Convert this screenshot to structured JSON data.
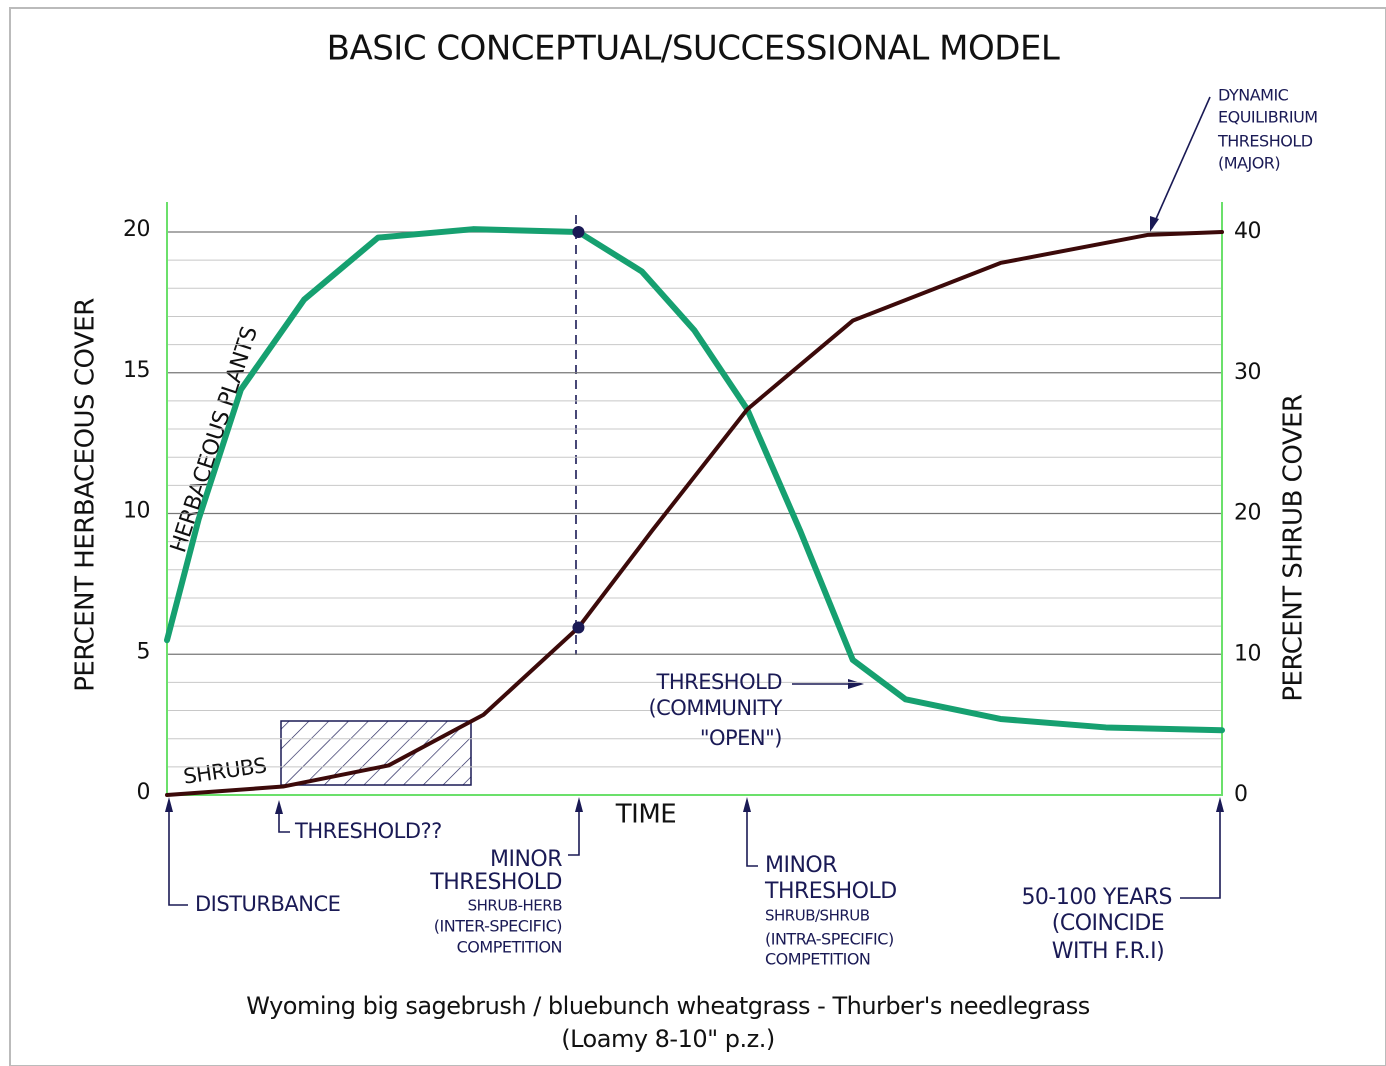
{
  "chart_data": {
    "type": "line",
    "title": "BASIC CONCEPTUAL/SUCCESSIONAL MODEL",
    "subtitle": [
      "Wyoming big sagebrush / bluebunch wheatgrass - Thurber's needlegrass",
      "(Loamy 8-10\" p.z.)"
    ],
    "x_label": "TIME",
    "y_label": "PERCENT HERBACEOUS COVER",
    "y2_label": "PERCENT SHRUB COVER",
    "xlim": [
      0,
      100
    ],
    "ylim": [
      0,
      20
    ],
    "yticks": [
      0,
      5,
      10,
      15,
      20
    ],
    "minor_yticks": [
      1,
      2,
      3,
      4,
      6,
      7,
      8,
      9,
      11,
      12,
      13,
      14,
      16,
      17,
      18,
      19
    ],
    "y2lim": [
      0,
      40
    ],
    "y2ticks": [
      0,
      10,
      20,
      30,
      40
    ],
    "grid": true,
    "series": [
      {
        "name": "HERBACEOUS PLANTS",
        "color": "#16a070",
        "x": [
          0,
          3,
          7,
          13,
          20,
          29,
          39,
          45,
          50,
          55,
          60,
          65,
          70,
          79,
          89,
          100
        ],
        "values": [
          5.5,
          9.8,
          14.4,
          17.6,
          19.8,
          20.1,
          20,
          18.6,
          16.5,
          13.7,
          9.4,
          4.8,
          3.4,
          2.7,
          2.4,
          2.3
        ]
      },
      {
        "name": "SHRUBS",
        "color": "#3c0a0a",
        "axis": "y2",
        "x": [
          0,
          11,
          21,
          30,
          39,
          46,
          55,
          65,
          79,
          93,
          100
        ],
        "values": [
          0,
          0.6,
          2.1,
          5.7,
          11.9,
          18.8,
          27.4,
          33.7,
          37.8,
          39.8,
          40
        ]
      }
    ],
    "annotations": [
      {
        "lines": [
          "THRESHOLD??"
        ]
      },
      {
        "lines": [
          "MINOR",
          "THRESHOLD",
          "SHRUB-HERB",
          "(INTER-SPECIFIC)",
          "COMPETITION"
        ]
      },
      {
        "lines": [
          "MINOR",
          "THRESHOLD",
          "SHRUB/SHRUB",
          "(INTRA-SPECIFIC)",
          "COMPETITION"
        ]
      },
      {
        "lines": [
          "DISTURBANCE"
        ]
      },
      {
        "lines": [
          "THRESHOLD",
          "(COMMUNITY",
          "\"OPEN\")"
        ]
      },
      {
        "lines": [
          "50-100 YEARS",
          "(COINCIDE",
          "WITH F.R.I)"
        ]
      },
      {
        "lines": [
          "DYNAMIC",
          "EQUILIBRIUM",
          "THRESHOLD",
          "(MAJOR)"
        ]
      }
    ]
  }
}
